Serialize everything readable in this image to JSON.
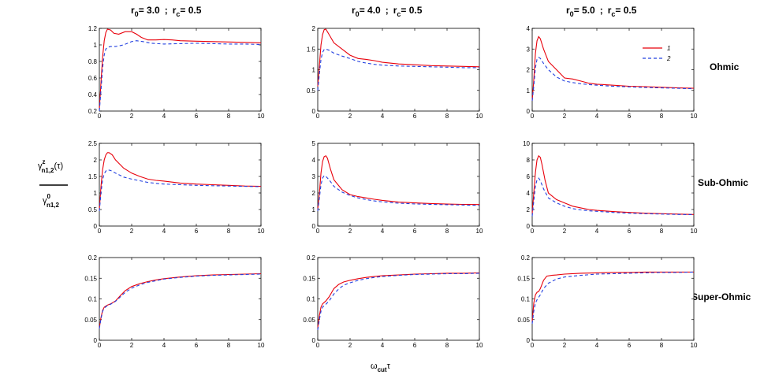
{
  "figure": {
    "column_titles": [
      {
        "r0_sym": "r",
        "r0_sub": "0",
        "r0_val": "= 3.0",
        "sep": ";",
        "rc_sym": "r",
        "rc_sub": "c",
        "rc_val": "= 0.5"
      },
      {
        "r0_sym": "r",
        "r0_sub": "0",
        "r0_val": "= 4.0",
        "sep": ";",
        "rc_sym": "r",
        "rc_sub": "c",
        "rc_val": "= 0.5"
      },
      {
        "r0_sym": "r",
        "r0_sub": "0",
        "r0_val": "= 5.0",
        "sep": ";",
        "rc_sym": "r",
        "rc_sub": "c",
        "rc_val": "= 0.5"
      }
    ],
    "row_labels": [
      "Ohmic",
      "Sub-Ohmic",
      "Super-Ohmic"
    ],
    "ylabel": {
      "num_sym": "γ",
      "num_sup": "z",
      "num_sub": "n1,2",
      "num_arg": "(τ)",
      "den_sym": "γ",
      "den_sup": "0",
      "den_sub": "n1,2"
    },
    "xlabel": {
      "sym": "ω",
      "sub": "cut",
      "tail": "τ"
    },
    "legend": [
      "1",
      "2"
    ]
  },
  "colors": {
    "series1": "#e8000b",
    "series2": "#2340e0"
  },
  "chart_data": [
    {
      "type": "line",
      "row": "Ohmic",
      "column": 0,
      "xlim": [
        0,
        10
      ],
      "ylim": [
        0.2,
        1.2
      ],
      "xticks": [
        0,
        2,
        4,
        6,
        8,
        10
      ],
      "yticks": [
        0.2,
        0.4,
        0.6,
        0.8,
        1,
        1.2
      ],
      "series": [
        {
          "name": "1",
          "x": [
            0,
            0.1,
            0.2,
            0.3,
            0.4,
            0.5,
            0.7,
            0.9,
            1.2,
            1.6,
            2,
            2.3,
            2.6,
            3,
            3.5,
            4,
            4.5,
            5,
            6,
            7,
            8,
            9,
            10
          ],
          "y": [
            0.22,
            0.55,
            0.85,
            1.05,
            1.15,
            1.19,
            1.18,
            1.14,
            1.13,
            1.16,
            1.16,
            1.13,
            1.09,
            1.06,
            1.06,
            1.065,
            1.06,
            1.05,
            1.045,
            1.04,
            1.035,
            1.03,
            1.025
          ]
        },
        {
          "name": "2",
          "x": [
            0,
            0.1,
            0.2,
            0.3,
            0.4,
            0.5,
            0.7,
            1,
            1.5,
            2,
            2.3,
            2.7,
            3.2,
            4,
            5,
            6,
            7,
            8,
            9,
            10
          ],
          "y": [
            0.2,
            0.45,
            0.72,
            0.88,
            0.95,
            0.97,
            0.98,
            0.98,
            1.0,
            1.04,
            1.05,
            1.04,
            1.02,
            1.01,
            1.015,
            1.02,
            1.015,
            1.01,
            1.01,
            1.005
          ]
        }
      ]
    },
    {
      "type": "line",
      "row": "Ohmic",
      "column": 1,
      "xlim": [
        0,
        10
      ],
      "ylim": [
        0,
        2
      ],
      "xticks": [
        0,
        2,
        4,
        6,
        8,
        10
      ],
      "yticks": [
        0,
        0.5,
        1,
        1.5,
        2
      ],
      "series": [
        {
          "name": "1",
          "x": [
            0,
            0.1,
            0.2,
            0.3,
            0.4,
            0.5,
            0.7,
            1,
            1.5,
            2,
            2.5,
            3,
            3.5,
            4,
            5,
            6,
            7,
            8,
            9,
            10
          ],
          "y": [
            0.6,
            1.1,
            1.6,
            1.85,
            1.97,
            1.98,
            1.85,
            1.65,
            1.5,
            1.35,
            1.27,
            1.25,
            1.22,
            1.18,
            1.14,
            1.12,
            1.1,
            1.09,
            1.08,
            1.07
          ]
        },
        {
          "name": "2",
          "x": [
            0,
            0.1,
            0.2,
            0.3,
            0.4,
            0.5,
            0.7,
            1,
            1.5,
            2,
            2.5,
            3,
            3.5,
            4,
            5,
            6,
            7,
            8,
            9,
            10
          ],
          "y": [
            0.5,
            0.9,
            1.25,
            1.42,
            1.49,
            1.5,
            1.47,
            1.4,
            1.33,
            1.27,
            1.2,
            1.16,
            1.13,
            1.11,
            1.09,
            1.08,
            1.07,
            1.06,
            1.05,
            1.05
          ]
        }
      ]
    },
    {
      "type": "line",
      "row": "Ohmic",
      "column": 2,
      "xlim": [
        0,
        10
      ],
      "ylim": [
        0,
        4
      ],
      "xticks": [
        0,
        2,
        4,
        6,
        8,
        10
      ],
      "yticks": [
        0,
        1,
        2,
        3,
        4
      ],
      "series": [
        {
          "name": "1",
          "x": [
            0,
            0.1,
            0.2,
            0.3,
            0.4,
            0.5,
            0.7,
            1,
            1.5,
            2,
            2.5,
            3,
            3.5,
            4,
            5,
            6,
            7,
            8,
            9,
            10
          ],
          "y": [
            0.5,
            1.5,
            2.8,
            3.4,
            3.6,
            3.5,
            3.0,
            2.4,
            2.0,
            1.6,
            1.55,
            1.45,
            1.35,
            1.3,
            1.25,
            1.2,
            1.18,
            1.15,
            1.12,
            1.1
          ]
        },
        {
          "name": "2",
          "x": [
            0,
            0.1,
            0.2,
            0.3,
            0.4,
            0.5,
            0.7,
            1,
            1.5,
            2,
            2.5,
            3,
            3.5,
            4,
            5,
            6,
            7,
            8,
            9,
            10
          ],
          "y": [
            0.5,
            1.2,
            2.1,
            2.5,
            2.6,
            2.55,
            2.3,
            2.0,
            1.65,
            1.45,
            1.38,
            1.32,
            1.28,
            1.25,
            1.2,
            1.17,
            1.14,
            1.12,
            1.1,
            1.08
          ]
        }
      ]
    },
    {
      "type": "line",
      "row": "Sub-Ohmic",
      "column": 0,
      "xlim": [
        0,
        10
      ],
      "ylim": [
        0,
        2.5
      ],
      "xticks": [
        0,
        2,
        4,
        6,
        8,
        10
      ],
      "yticks": [
        0,
        0.5,
        1,
        1.5,
        2,
        2.5
      ],
      "series": [
        {
          "name": "1",
          "x": [
            0,
            0.1,
            0.2,
            0.3,
            0.4,
            0.5,
            0.6,
            0.8,
            1,
            1.5,
            2,
            2.5,
            3,
            3.5,
            4,
            5,
            6,
            7,
            8,
            9,
            10
          ],
          "y": [
            0.5,
            1.2,
            1.7,
            2.0,
            2.15,
            2.22,
            2.22,
            2.15,
            2.0,
            1.75,
            1.6,
            1.5,
            1.42,
            1.38,
            1.36,
            1.3,
            1.27,
            1.25,
            1.23,
            1.21,
            1.2
          ]
        },
        {
          "name": "2",
          "x": [
            0,
            0.1,
            0.2,
            0.3,
            0.4,
            0.5,
            0.7,
            1,
            1.5,
            2,
            2.5,
            3,
            3.5,
            4,
            5,
            6,
            7,
            8,
            9,
            10
          ],
          "y": [
            0.45,
            1.0,
            1.4,
            1.58,
            1.66,
            1.7,
            1.68,
            1.6,
            1.48,
            1.42,
            1.37,
            1.32,
            1.29,
            1.27,
            1.25,
            1.23,
            1.22,
            1.21,
            1.2,
            1.19
          ]
        }
      ]
    },
    {
      "type": "line",
      "row": "Sub-Ohmic",
      "column": 1,
      "xlim": [
        0,
        10
      ],
      "ylim": [
        0,
        5
      ],
      "xticks": [
        0,
        2,
        4,
        6,
        8,
        10
      ],
      "yticks": [
        0,
        1,
        2,
        3,
        4,
        5
      ],
      "series": [
        {
          "name": "1",
          "x": [
            0,
            0.1,
            0.2,
            0.3,
            0.4,
            0.5,
            0.6,
            0.8,
            1,
            1.5,
            2,
            2.5,
            3,
            3.5,
            4,
            5,
            6,
            7,
            8,
            9,
            10
          ],
          "y": [
            1.0,
            2.0,
            3.2,
            3.9,
            4.2,
            4.25,
            4.1,
            3.4,
            2.8,
            2.2,
            1.9,
            1.78,
            1.7,
            1.62,
            1.55,
            1.45,
            1.4,
            1.36,
            1.33,
            1.31,
            1.3
          ]
        },
        {
          "name": "2",
          "x": [
            0,
            0.1,
            0.2,
            0.3,
            0.4,
            0.5,
            0.7,
            1,
            1.5,
            2,
            2.5,
            3,
            3.5,
            4,
            5,
            6,
            7,
            8,
            9,
            10
          ],
          "y": [
            0.9,
            1.7,
            2.5,
            2.9,
            3.05,
            3.0,
            2.8,
            2.4,
            2.05,
            1.85,
            1.7,
            1.6,
            1.52,
            1.46,
            1.38,
            1.34,
            1.31,
            1.29,
            1.27,
            1.25
          ]
        }
      ]
    },
    {
      "type": "line",
      "row": "Sub-Ohmic",
      "column": 2,
      "xlim": [
        0,
        10
      ],
      "ylim": [
        0,
        10
      ],
      "xticks": [
        0,
        2,
        4,
        6,
        8,
        10
      ],
      "yticks": [
        0,
        2,
        4,
        6,
        8,
        10
      ],
      "series": [
        {
          "name": "1",
          "x": [
            0,
            0.1,
            0.2,
            0.3,
            0.4,
            0.5,
            0.6,
            0.8,
            1,
            1.5,
            2,
            2.5,
            3,
            3.5,
            4,
            5,
            6,
            7,
            8,
            9,
            10
          ],
          "y": [
            1.5,
            4.0,
            6.5,
            8.0,
            8.5,
            8.3,
            7.5,
            5.5,
            4.0,
            3.2,
            2.8,
            2.4,
            2.2,
            2.0,
            1.9,
            1.75,
            1.65,
            1.55,
            1.5,
            1.45,
            1.4
          ]
        },
        {
          "name": "2",
          "x": [
            0,
            0.1,
            0.2,
            0.3,
            0.4,
            0.5,
            0.7,
            1,
            1.5,
            2,
            2.5,
            3,
            3.5,
            4,
            5,
            6,
            7,
            8,
            9,
            10
          ],
          "y": [
            1.2,
            3.0,
            4.8,
            5.6,
            5.8,
            5.5,
            4.5,
            3.4,
            2.8,
            2.4,
            2.1,
            1.95,
            1.85,
            1.78,
            1.65,
            1.55,
            1.5,
            1.45,
            1.4,
            1.38
          ]
        }
      ]
    },
    {
      "type": "line",
      "row": "Super-Ohmic",
      "column": 0,
      "xlim": [
        0,
        10
      ],
      "ylim": [
        0,
        0.2
      ],
      "xticks": [
        0,
        2,
        4,
        6,
        8,
        10
      ],
      "yticks": [
        0,
        0.05,
        0.1,
        0.15,
        0.2
      ],
      "series": [
        {
          "name": "1",
          "x": [
            0,
            0.1,
            0.2,
            0.3,
            0.5,
            0.7,
            1,
            1.3,
            1.6,
            2,
            2.5,
            3,
            3.5,
            4,
            5,
            6,
            7,
            8,
            9,
            10
          ],
          "y": [
            0.03,
            0.055,
            0.072,
            0.08,
            0.085,
            0.088,
            0.095,
            0.108,
            0.12,
            0.13,
            0.137,
            0.142,
            0.146,
            0.149,
            0.153,
            0.156,
            0.158,
            0.159,
            0.16,
            0.161
          ]
        },
        {
          "name": "2",
          "x": [
            0,
            0.1,
            0.2,
            0.3,
            0.5,
            0.7,
            1,
            1.3,
            1.6,
            2,
            2.5,
            3,
            3.5,
            4,
            5,
            6,
            7,
            8,
            9,
            10
          ],
          "y": [
            0.028,
            0.052,
            0.07,
            0.078,
            0.084,
            0.087,
            0.094,
            0.105,
            0.116,
            0.126,
            0.134,
            0.14,
            0.144,
            0.148,
            0.152,
            0.155,
            0.157,
            0.158,
            0.159,
            0.16
          ]
        }
      ]
    },
    {
      "type": "line",
      "row": "Super-Ohmic",
      "column": 1,
      "xlim": [
        0,
        10
      ],
      "ylim": [
        0,
        0.2
      ],
      "xticks": [
        0,
        2,
        4,
        6,
        8,
        10
      ],
      "yticks": [
        0,
        0.05,
        0.1,
        0.15,
        0.2
      ],
      "series": [
        {
          "name": "1",
          "x": [
            0,
            0.1,
            0.2,
            0.3,
            0.5,
            0.7,
            1,
            1.3,
            1.6,
            2,
            2.5,
            3,
            3.5,
            4,
            5,
            6,
            7,
            8,
            9,
            10
          ],
          "y": [
            0.03,
            0.06,
            0.08,
            0.088,
            0.095,
            0.105,
            0.125,
            0.135,
            0.141,
            0.145,
            0.149,
            0.152,
            0.154,
            0.156,
            0.158,
            0.16,
            0.161,
            0.162,
            0.162,
            0.163
          ]
        },
        {
          "name": "2",
          "x": [
            0,
            0.1,
            0.2,
            0.3,
            0.5,
            0.7,
            1,
            1.3,
            1.6,
            2,
            2.5,
            3,
            3.5,
            4,
            5,
            6,
            7,
            8,
            9,
            10
          ],
          "y": [
            0.025,
            0.05,
            0.07,
            0.08,
            0.087,
            0.095,
            0.112,
            0.124,
            0.133,
            0.139,
            0.145,
            0.149,
            0.152,
            0.154,
            0.157,
            0.159,
            0.16,
            0.161,
            0.161,
            0.162
          ]
        }
      ]
    },
    {
      "type": "line",
      "row": "Super-Ohmic",
      "column": 2,
      "xlim": [
        0,
        10
      ],
      "ylim": [
        0,
        0.2
      ],
      "xticks": [
        0,
        2,
        4,
        6,
        8,
        10
      ],
      "yticks": [
        0,
        0.05,
        0.1,
        0.15,
        0.2
      ],
      "series": [
        {
          "name": "1",
          "x": [
            0,
            0.1,
            0.2,
            0.3,
            0.4,
            0.5,
            0.7,
            0.9,
            1.2,
            1.5,
            2,
            3,
            4,
            5,
            6,
            7,
            8,
            9,
            10
          ],
          "y": [
            0.045,
            0.09,
            0.11,
            0.116,
            0.118,
            0.125,
            0.145,
            0.155,
            0.157,
            0.158,
            0.16,
            0.162,
            0.163,
            0.164,
            0.164,
            0.165,
            0.165,
            0.165,
            0.165
          ]
        },
        {
          "name": "2",
          "x": [
            0,
            0.1,
            0.2,
            0.3,
            0.4,
            0.5,
            0.7,
            1,
            1.5,
            2,
            3,
            4,
            5,
            6,
            7,
            8,
            9,
            10
          ],
          "y": [
            0.04,
            0.07,
            0.09,
            0.098,
            0.104,
            0.11,
            0.125,
            0.138,
            0.148,
            0.153,
            0.157,
            0.16,
            0.161,
            0.162,
            0.163,
            0.164,
            0.164,
            0.165
          ]
        }
      ]
    }
  ]
}
